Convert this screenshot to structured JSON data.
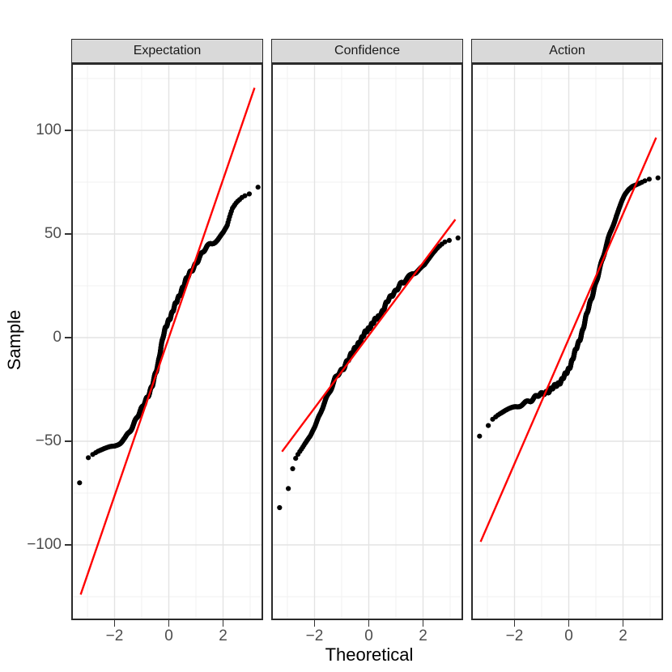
{
  "figure": {
    "background": "#FFFFFF",
    "panel_border_color": "#2B2B2B",
    "strip_bg": "#D9D9D9",
    "strip_text_color": "#1A1A1A",
    "grid_major_color": "#E3E3E3",
    "grid_minor_color": "#F0F0F0",
    "axis_text_color": "#4D4D4D",
    "axis_title_color": "#000000",
    "tick_mark_color": "#333333"
  },
  "chart_data": {
    "type": "scatter",
    "subtype": "qq-plot-faceted",
    "title": "",
    "xlabel": "Theoretical",
    "ylabel": "Sample",
    "point_color": "#000000",
    "qq_line_color": "#FF0000",
    "n_points_per_facet": 1000,
    "xlim": [
      -3.6,
      3.48
    ],
    "ylim": [
      -136.5,
      132.5
    ],
    "grid": {
      "x_major": [
        -2,
        0,
        2
      ],
      "x_minor": [
        -3,
        -1,
        1,
        3
      ],
      "y_major": [
        -100,
        -50,
        0,
        50,
        100
      ],
      "y_minor": [
        -125,
        -75,
        -25,
        25,
        75,
        125
      ]
    },
    "x_ticks": [
      {
        "value": -2,
        "label": "−2"
      },
      {
        "value": 0,
        "label": "0"
      },
      {
        "value": 2,
        "label": "2"
      }
    ],
    "y_ticks": [
      {
        "value": 100,
        "label": "100"
      },
      {
        "value": 50,
        "label": "50"
      },
      {
        "value": 0,
        "label": "0"
      },
      {
        "value": -50,
        "label": "−50"
      },
      {
        "value": -100,
        "label": "−100"
      }
    ],
    "facets": [
      {
        "label": "Expectation",
        "qq_line": {
          "x1": -3.25,
          "y1": -124,
          "x2": 3.16,
          "y2": 120.5
        },
        "curve_knots": [
          [
            -3.29,
            -70.5
          ],
          [
            -2.97,
            -58.5
          ],
          [
            -2.81,
            -57
          ],
          [
            -2.6,
            -55.5
          ],
          [
            -2.4,
            -54.5
          ],
          [
            -2.2,
            -53.5
          ],
          [
            -2.0,
            -52.5
          ],
          [
            -1.8,
            -50.5
          ],
          [
            -1.6,
            -48
          ],
          [
            -1.4,
            -44
          ],
          [
            -1.2,
            -39.5
          ],
          [
            -1.0,
            -34.5
          ],
          [
            -0.85,
            -30
          ],
          [
            -0.7,
            -26
          ],
          [
            -0.6,
            -23
          ],
          [
            -0.5,
            -18
          ],
          [
            -0.4,
            -13
          ],
          [
            -0.3,
            -5
          ],
          [
            -0.2,
            1
          ],
          [
            -0.1,
            5
          ],
          [
            0,
            8.5
          ],
          [
            0.1,
            11.5
          ],
          [
            0.2,
            14.5
          ],
          [
            0.35,
            19
          ],
          [
            0.5,
            24
          ],
          [
            0.65,
            28
          ],
          [
            0.8,
            31.5
          ],
          [
            1.0,
            36
          ],
          [
            1.2,
            40
          ],
          [
            1.4,
            43.5
          ],
          [
            1.6,
            45.5
          ],
          [
            1.8,
            47.5
          ],
          [
            2.0,
            50.5
          ],
          [
            2.15,
            54
          ],
          [
            2.25,
            59
          ],
          [
            2.35,
            63
          ],
          [
            2.5,
            66
          ],
          [
            2.7,
            68.5
          ],
          [
            2.9,
            70
          ],
          [
            3.05,
            70.5
          ],
          [
            3.29,
            73.5
          ]
        ]
      },
      {
        "label": "Confidence",
        "qq_line": {
          "x1": -3.2,
          "y1": -55,
          "x2": 3.19,
          "y2": 57
        },
        "curve_knots": [
          [
            -3.29,
            -82.5
          ],
          [
            -2.97,
            -73.5
          ],
          [
            -2.81,
            -64
          ],
          [
            -2.7,
            -59
          ],
          [
            -2.61,
            -57
          ],
          [
            -2.45,
            -54
          ],
          [
            -2.3,
            -51
          ],
          [
            -2.15,
            -48
          ],
          [
            -2.0,
            -43.5
          ],
          [
            -1.85,
            -37.5
          ],
          [
            -1.7,
            -33.5
          ],
          [
            -1.55,
            -28.5
          ],
          [
            -1.4,
            -24.5
          ],
          [
            -1.25,
            -20
          ],
          [
            -1.1,
            -17.5
          ],
          [
            -0.95,
            -15.5
          ],
          [
            -0.8,
            -11
          ],
          [
            -0.65,
            -8
          ],
          [
            -0.5,
            -5.5
          ],
          [
            -0.35,
            -2
          ],
          [
            -0.2,
            1
          ],
          [
            -0.05,
            3.5
          ],
          [
            0.1,
            6.5
          ],
          [
            0.25,
            8.5
          ],
          [
            0.4,
            10.5
          ],
          [
            0.55,
            14
          ],
          [
            0.7,
            17.5
          ],
          [
            0.85,
            20.5
          ],
          [
            1.0,
            23
          ],
          [
            1.15,
            25.5
          ],
          [
            1.3,
            26.5
          ],
          [
            1.45,
            28.5
          ],
          [
            1.6,
            31
          ],
          [
            1.75,
            32
          ],
          [
            1.9,
            33.5
          ],
          [
            2.05,
            35
          ],
          [
            2.2,
            38
          ],
          [
            2.35,
            41
          ],
          [
            2.5,
            43.5
          ],
          [
            2.65,
            45.5
          ],
          [
            2.8,
            47
          ],
          [
            3.0,
            48
          ],
          [
            3.29,
            49
          ]
        ]
      },
      {
        "label": "Action",
        "qq_line": {
          "x1": -3.25,
          "y1": -98.5,
          "x2": 3.22,
          "y2": 96.5
        },
        "curve_knots": [
          [
            -3.29,
            -48
          ],
          [
            -2.97,
            -43
          ],
          [
            -2.81,
            -40
          ],
          [
            -2.6,
            -38
          ],
          [
            -2.4,
            -36.5
          ],
          [
            -2.2,
            -35
          ],
          [
            -2.0,
            -33.5
          ],
          [
            -1.8,
            -32.5
          ],
          [
            -1.6,
            -31
          ],
          [
            -1.4,
            -30
          ],
          [
            -1.2,
            -28.5
          ],
          [
            -1.0,
            -27.5
          ],
          [
            -0.8,
            -26
          ],
          [
            -0.6,
            -24.5
          ],
          [
            -0.45,
            -23
          ],
          [
            -0.3,
            -21
          ],
          [
            -0.15,
            -18.5
          ],
          [
            -0.05,
            -16.5
          ],
          [
            0.05,
            -13.5
          ],
          [
            0.15,
            -10
          ],
          [
            0.25,
            -6.5
          ],
          [
            0.35,
            -3
          ],
          [
            0.45,
            1
          ],
          [
            0.55,
            5.5
          ],
          [
            0.65,
            10.5
          ],
          [
            0.75,
            15
          ],
          [
            0.85,
            19.5
          ],
          [
            0.95,
            24.5
          ],
          [
            1.05,
            29
          ],
          [
            1.15,
            33.5
          ],
          [
            1.3,
            40
          ],
          [
            1.45,
            47
          ],
          [
            1.6,
            53
          ],
          [
            1.75,
            59
          ],
          [
            1.9,
            64
          ],
          [
            2.05,
            68.5
          ],
          [
            2.2,
            71.5
          ],
          [
            2.35,
            73.5
          ],
          [
            2.5,
            74.5
          ],
          [
            2.65,
            75.5
          ],
          [
            2.8,
            76.5
          ],
          [
            3.0,
            77.5
          ],
          [
            3.29,
            78
          ]
        ]
      }
    ]
  }
}
